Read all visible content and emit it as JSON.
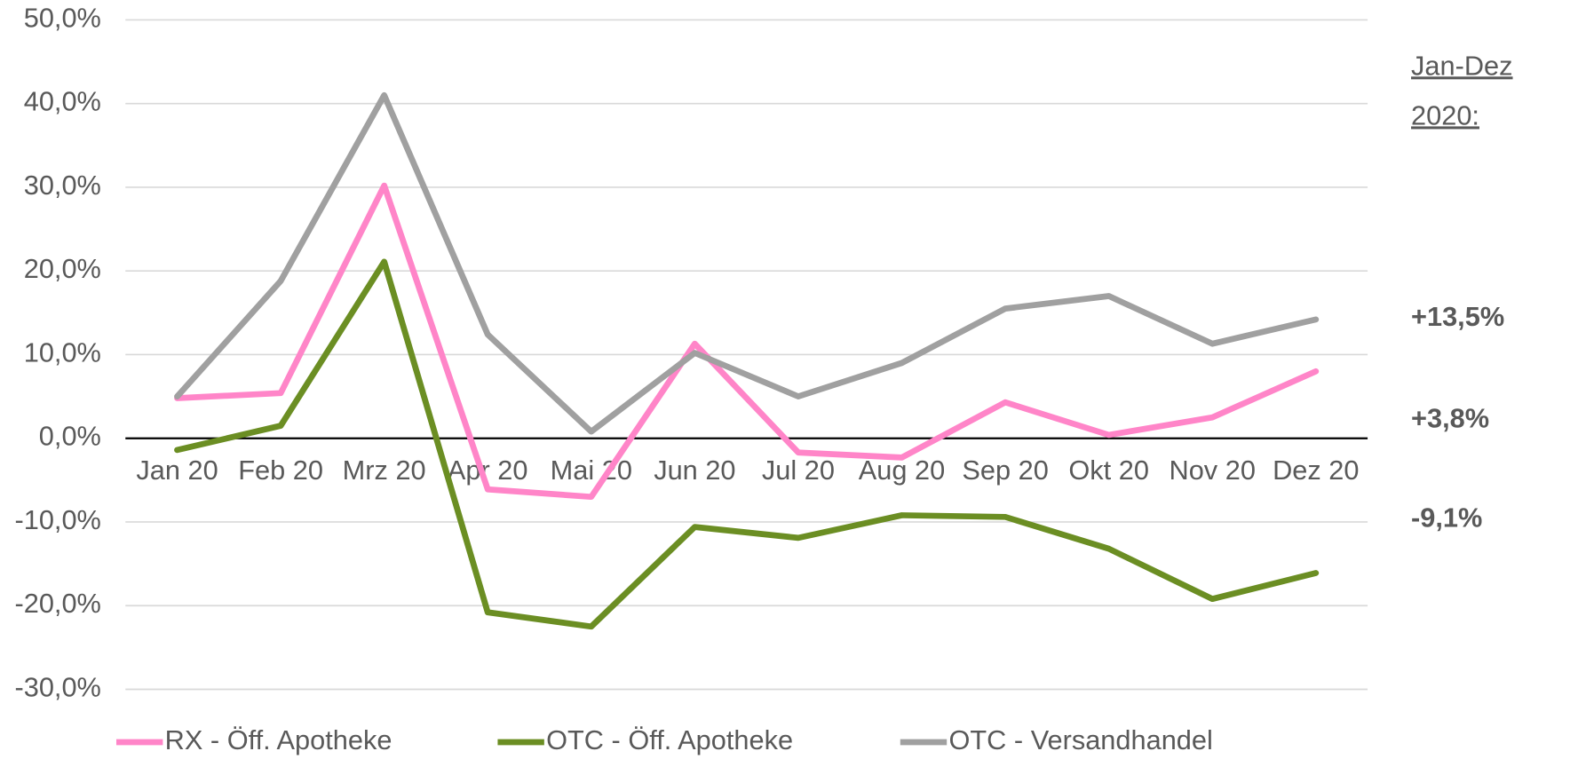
{
  "chart_data": {
    "type": "line",
    "categories": [
      "Jan 20",
      "Feb 20",
      "Mrz 20",
      "Apr 20",
      "Mai 20",
      "Jun 20",
      "Jul 20",
      "Aug 20",
      "Sep 20",
      "Okt 20",
      "Nov 20",
      "Dez 20"
    ],
    "series": [
      {
        "name": "RX - Öff. Apotheke",
        "color": "#ff85c8",
        "values": [
          4.8,
          5.4,
          30.2,
          -6.1,
          -7.0,
          11.3,
          -1.7,
          -2.3,
          4.3,
          0.4,
          2.5,
          8.0
        ]
      },
      {
        "name": "OTC - Öff. Apotheke",
        "color": "#6b8e23",
        "values": [
          -1.4,
          1.5,
          21.1,
          -20.8,
          -22.5,
          -10.6,
          -11.9,
          -9.2,
          -9.4,
          -13.2,
          -19.2,
          -16.1
        ]
      },
      {
        "name": "OTC - Versandhandel",
        "color": "#a0a0a0",
        "values": [
          5.0,
          18.8,
          41.0,
          12.4,
          0.8,
          10.2,
          5.0,
          9.0,
          15.5,
          17.0,
          11.3,
          14.2
        ]
      }
    ],
    "ylim": [
      -30,
      50
    ],
    "yticks": [
      {
        "value": -30,
        "label": "-30,0%"
      },
      {
        "value": -20,
        "label": "-20,0%"
      },
      {
        "value": -10,
        "label": "-10,0%"
      },
      {
        "value": 0,
        "label": "0,0%"
      },
      {
        "value": 10,
        "label": "10,0%"
      },
      {
        "value": 20,
        "label": "20,0%"
      },
      {
        "value": 30,
        "label": "30,0%"
      },
      {
        "value": 40,
        "label": "40,0%"
      },
      {
        "value": 50,
        "label": "50,0%"
      }
    ],
    "grid": true,
    "legend": "bottom",
    "heading": [
      "Jan-Dez",
      "2020:"
    ],
    "annotations": [
      {
        "text": "+13,5%",
        "color": "#a0a0a0"
      },
      {
        "text": "+3,8%",
        "color": "#ff85c8"
      },
      {
        "text": "-9,1%",
        "color": "#6b8e23"
      }
    ]
  }
}
